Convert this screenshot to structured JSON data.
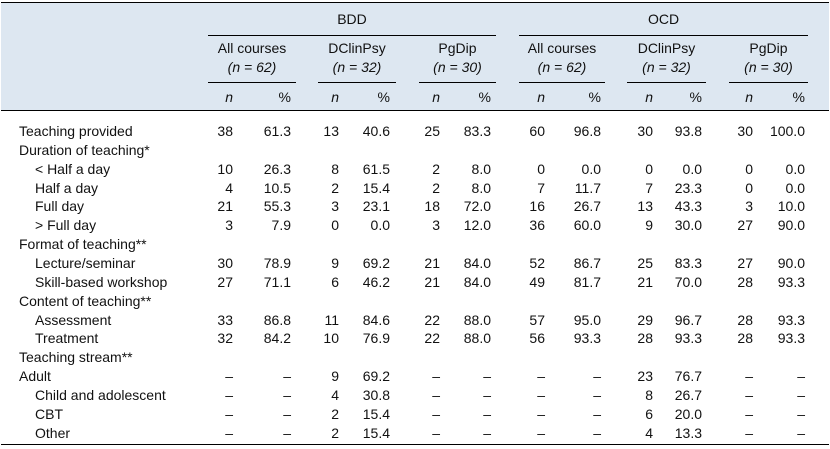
{
  "groups": [
    {
      "label": "BDD",
      "subgroups": [
        {
          "name": "All courses",
          "n_label": "(n = 62)"
        },
        {
          "name": "DClinPsy",
          "n_label": "(n = 32)"
        },
        {
          "name": "PgDip",
          "n_label": "(n = 30)"
        }
      ]
    },
    {
      "label": "OCD",
      "subgroups": [
        {
          "name": "All courses",
          "n_label": "(n = 62)"
        },
        {
          "name": "DClinPsy",
          "n_label": "(n = 32)"
        },
        {
          "name": "PgDip",
          "n_label": "(n = 30)"
        }
      ]
    }
  ],
  "col_headers": [
    "n",
    "%",
    "n",
    "%",
    "n",
    "%",
    "n",
    "%",
    "n",
    "%",
    "n",
    "%"
  ],
  "rows": [
    {
      "label": "Teaching provided",
      "indent": false,
      "values": [
        "38",
        "61.3",
        "13",
        "40.6",
        "25",
        "83.3",
        "60",
        "96.8",
        "30",
        "93.8",
        "30",
        "100.0"
      ]
    },
    {
      "label": "Duration of teaching*",
      "indent": false,
      "values": []
    },
    {
      "label": "< Half a day",
      "indent": true,
      "values": [
        "10",
        "26.3",
        "8",
        "61.5",
        "2",
        "8.0",
        "0",
        "0.0",
        "0",
        "0.0",
        "0",
        "0.0"
      ]
    },
    {
      "label": "Half a day",
      "indent": true,
      "values": [
        "4",
        "10.5",
        "2",
        "15.4",
        "2",
        "8.0",
        "7",
        "11.7",
        "7",
        "23.3",
        "0",
        "0.0"
      ]
    },
    {
      "label": "Full day",
      "indent": true,
      "values": [
        "21",
        "55.3",
        "3",
        "23.1",
        "18",
        "72.0",
        "16",
        "26.7",
        "13",
        "43.3",
        "3",
        "10.0"
      ]
    },
    {
      "label": "> Full day",
      "indent": true,
      "values": [
        "3",
        "7.9",
        "0",
        "0.0",
        "3",
        "12.0",
        "36",
        "60.0",
        "9",
        "30.0",
        "27",
        "90.0"
      ]
    },
    {
      "label": "Format of teaching**",
      "indent": false,
      "values": []
    },
    {
      "label": "Lecture/seminar",
      "indent": true,
      "values": [
        "30",
        "78.9",
        "9",
        "69.2",
        "21",
        "84.0",
        "52",
        "86.7",
        "25",
        "83.3",
        "27",
        "90.0"
      ]
    },
    {
      "label": "Skill-based workshop",
      "indent": true,
      "values": [
        "27",
        "71.1",
        "6",
        "46.2",
        "21",
        "84.0",
        "49",
        "81.7",
        "21",
        "70.0",
        "28",
        "93.3"
      ]
    },
    {
      "label": "Content of teaching**",
      "indent": false,
      "values": []
    },
    {
      "label": "Assessment",
      "indent": true,
      "values": [
        "33",
        "86.8",
        "11",
        "84.6",
        "22",
        "88.0",
        "57",
        "95.0",
        "29",
        "96.7",
        "28",
        "93.3"
      ]
    },
    {
      "label": "Treatment",
      "indent": true,
      "values": [
        "32",
        "84.2",
        "10",
        "76.9",
        "22",
        "88.0",
        "56",
        "93.3",
        "28",
        "93.3",
        "28",
        "93.3"
      ]
    },
    {
      "label": "Teaching stream**",
      "indent": false,
      "values": []
    },
    {
      "label": "Adult",
      "indent": false,
      "values": [
        "–",
        "–",
        "9",
        "69.2",
        "–",
        "–",
        "–",
        "–",
        "23",
        "76.7",
        "–",
        "–"
      ]
    },
    {
      "label": "Child and adolescent",
      "indent": true,
      "values": [
        "–",
        "–",
        "4",
        "30.8",
        "–",
        "–",
        "–",
        "–",
        "8",
        "26.7",
        "–",
        "–"
      ]
    },
    {
      "label": "CBT",
      "indent": true,
      "values": [
        "–",
        "–",
        "2",
        "15.4",
        "–",
        "–",
        "–",
        "–",
        "6",
        "20.0",
        "–",
        "–"
      ]
    },
    {
      "label": "Other",
      "indent": true,
      "values": [
        "–",
        "–",
        "2",
        "15.4",
        "–",
        "–",
        "–",
        "–",
        "4",
        "13.3",
        "–",
        "–"
      ]
    }
  ]
}
